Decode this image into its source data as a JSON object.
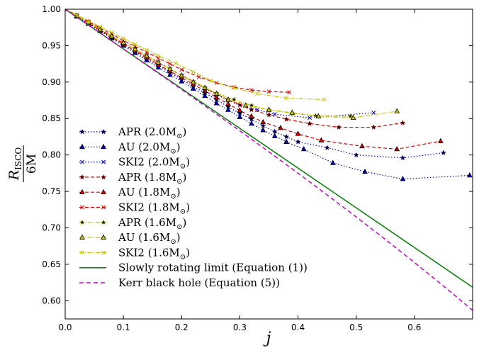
{
  "chart_data": {
    "type": "line",
    "title": "",
    "xlabel": "j",
    "ylabel": {
      "main": "R",
      "sub": "ISCO",
      "den": "6M"
    },
    "xlim": [
      0.0,
      0.7
    ],
    "ylim": [
      0.575,
      1.0
    ],
    "xticks": [
      "0.0",
      "0.1",
      "0.2",
      "0.3",
      "0.4",
      "0.5",
      "0.6"
    ],
    "yticks": [
      "0.60",
      "0.65",
      "0.70",
      "0.75",
      "0.80",
      "0.85",
      "0.90",
      "0.95",
      "1.00"
    ],
    "grid": false,
    "legend_position": "lower-left",
    "colors": {
      "blue": "#0000cc",
      "red": "#dd0000",
      "yellow": "#c8c800",
      "green": "#008000",
      "magenta": "#cc00cc"
    },
    "series": [
      {
        "name": "APR (2.0M",
        "marker": "star",
        "color": "#0000cc",
        "dash": "1.5,2.5",
        "x": [
          0,
          0.02,
          0.04,
          0.06,
          0.08,
          0.1,
          0.12,
          0.14,
          0.16,
          0.18,
          0.2,
          0.22,
          0.24,
          0.26,
          0.28,
          0.3,
          0.32,
          0.34,
          0.36,
          0.38,
          0.4,
          0.45,
          0.5,
          0.58,
          0.65
        ],
        "y": [
          1.0,
          0.99,
          0.981,
          0.971,
          0.961,
          0.952,
          0.942,
          0.932,
          0.923,
          0.913,
          0.904,
          0.894,
          0.885,
          0.876,
          0.866,
          0.857,
          0.849,
          0.84,
          0.832,
          0.825,
          0.818,
          0.81,
          0.8,
          0.796,
          0.803
        ]
      },
      {
        "name": "AU (2.0M",
        "marker": "triangle",
        "color": "#0000cc",
        "dash": "1.5,2.5",
        "x": [
          0,
          0.02,
          0.04,
          0.06,
          0.08,
          0.1,
          0.12,
          0.14,
          0.16,
          0.18,
          0.2,
          0.22,
          0.24,
          0.26,
          0.28,
          0.3,
          0.32,
          0.34,
          0.36,
          0.38,
          0.41,
          0.46,
          0.515,
          0.58,
          0.695
        ],
        "y": [
          1.0,
          0.99,
          0.98,
          0.97,
          0.96,
          0.95,
          0.94,
          0.93,
          0.92,
          0.91,
          0.901,
          0.891,
          0.881,
          0.871,
          0.862,
          0.852,
          0.843,
          0.834,
          0.826,
          0.818,
          0.808,
          0.789,
          0.777,
          0.767,
          0.772
        ]
      },
      {
        "name": "SKI2 (2.0M",
        "marker": "x",
        "color": "#0000cc",
        "dash": "1.5,2.5",
        "x": [
          0,
          0.02,
          0.04,
          0.06,
          0.08,
          0.1,
          0.12,
          0.14,
          0.16,
          0.18,
          0.2,
          0.22,
          0.24,
          0.26,
          0.28,
          0.3,
          0.33,
          0.36,
          0.42,
          0.53
        ],
        "y": [
          1.0,
          0.991,
          0.982,
          0.972,
          0.963,
          0.954,
          0.945,
          0.936,
          0.927,
          0.918,
          0.909,
          0.9,
          0.891,
          0.883,
          0.875,
          0.868,
          0.862,
          0.856,
          0.851,
          0.858
        ]
      },
      {
        "name": "APR (1.8M",
        "marker": "star",
        "color": "#dd0000",
        "dash": "5,3",
        "x": [
          0,
          0.02,
          0.04,
          0.06,
          0.08,
          0.1,
          0.12,
          0.14,
          0.16,
          0.18,
          0.2,
          0.22,
          0.24,
          0.26,
          0.28,
          0.3,
          0.32,
          0.35,
          0.38,
          0.42,
          0.47,
          0.53,
          0.58
        ],
        "y": [
          1.0,
          0.991,
          0.982,
          0.972,
          0.963,
          0.954,
          0.945,
          0.936,
          0.927,
          0.918,
          0.909,
          0.901,
          0.892,
          0.884,
          0.876,
          0.869,
          0.862,
          0.855,
          0.849,
          0.843,
          0.838,
          0.838,
          0.844
        ]
      },
      {
        "name": "AU (1.8M",
        "marker": "triangle",
        "color": "#dd0000",
        "dash": "5,3",
        "x": [
          0,
          0.02,
          0.04,
          0.06,
          0.08,
          0.1,
          0.12,
          0.14,
          0.16,
          0.18,
          0.2,
          0.22,
          0.24,
          0.26,
          0.28,
          0.3,
          0.32,
          0.34,
          0.37,
          0.4,
          0.44,
          0.51,
          0.57,
          0.645
        ],
        "y": [
          1.0,
          0.991,
          0.981,
          0.971,
          0.962,
          0.952,
          0.943,
          0.934,
          0.924,
          0.915,
          0.906,
          0.897,
          0.888,
          0.879,
          0.87,
          0.861,
          0.853,
          0.845,
          0.837,
          0.829,
          0.82,
          0.812,
          0.808,
          0.819
        ]
      },
      {
        "name": "SKI2 (1.8M",
        "marker": "x",
        "color": "#dd0000",
        "dash": "5,3",
        "x": [
          0,
          0.02,
          0.04,
          0.06,
          0.08,
          0.1,
          0.12,
          0.14,
          0.16,
          0.18,
          0.2,
          0.23,
          0.26,
          0.29,
          0.32,
          0.35,
          0.385
        ],
        "y": [
          1.0,
          0.992,
          0.983,
          0.974,
          0.966,
          0.957,
          0.949,
          0.941,
          0.933,
          0.925,
          0.917,
          0.907,
          0.899,
          0.893,
          0.889,
          0.887,
          0.886
        ]
      },
      {
        "name": "APR (1.6M",
        "marker": "star",
        "color": "#c8c800",
        "dash": "6,2,1.5,2",
        "x": [
          0,
          0.02,
          0.04,
          0.06,
          0.08,
          0.1,
          0.12,
          0.14,
          0.16,
          0.18,
          0.2,
          0.22,
          0.24,
          0.26,
          0.29,
          0.32,
          0.35,
          0.39,
          0.43,
          0.49
        ],
        "y": [
          1.0,
          0.991,
          0.982,
          0.972,
          0.963,
          0.954,
          0.945,
          0.936,
          0.927,
          0.918,
          0.909,
          0.901,
          0.893,
          0.885,
          0.876,
          0.868,
          0.862,
          0.857,
          0.854,
          0.853
        ]
      },
      {
        "name": "AU (1.6M",
        "marker": "triangle",
        "color": "#c8c800",
        "dash": "6,2,1.5,2",
        "x": [
          0,
          0.02,
          0.04,
          0.06,
          0.08,
          0.1,
          0.12,
          0.14,
          0.16,
          0.18,
          0.2,
          0.22,
          0.24,
          0.26,
          0.28,
          0.31,
          0.35,
          0.39,
          0.435,
          0.495,
          0.57
        ],
        "y": [
          1.0,
          0.991,
          0.982,
          0.972,
          0.963,
          0.954,
          0.945,
          0.936,
          0.927,
          0.918,
          0.909,
          0.9,
          0.892,
          0.884,
          0.876,
          0.868,
          0.862,
          0.858,
          0.853,
          0.851,
          0.86
        ]
      },
      {
        "name": "SKI2 (1.6M",
        "marker": "x",
        "color": "#c8c800",
        "dash": "6,2,1.5,2",
        "x": [
          0,
          0.02,
          0.04,
          0.06,
          0.08,
          0.1,
          0.12,
          0.14,
          0.16,
          0.19,
          0.22,
          0.25,
          0.29,
          0.33,
          0.38,
          0.445
        ],
        "y": [
          1.0,
          0.992,
          0.984,
          0.976,
          0.968,
          0.96,
          0.952,
          0.944,
          0.936,
          0.926,
          0.914,
          0.902,
          0.892,
          0.884,
          0.878,
          0.876
        ]
      },
      {
        "name": "Slowly rotating limit (Equation (1))",
        "marker": "none",
        "color": "#008000",
        "dash": "",
        "x": [
          0,
          0.7
        ],
        "y": [
          1.0,
          0.6185
        ]
      },
      {
        "name": "Kerr black hole (Equation (5))",
        "marker": "none",
        "color": "#cc00cc",
        "dash": "6,4",
        "x": [
          0,
          0.05,
          0.1,
          0.15,
          0.2,
          0.25,
          0.3,
          0.35,
          0.4,
          0.45,
          0.5,
          0.55,
          0.6,
          0.65,
          0.7
        ],
        "y": [
          1.0,
          0.9728,
          0.9454,
          0.9178,
          0.8899,
          0.8617,
          0.8332,
          0.8043,
          0.775,
          0.7452,
          0.715,
          0.6841,
          0.6525,
          0.6202,
          0.5868
        ]
      }
    ]
  }
}
